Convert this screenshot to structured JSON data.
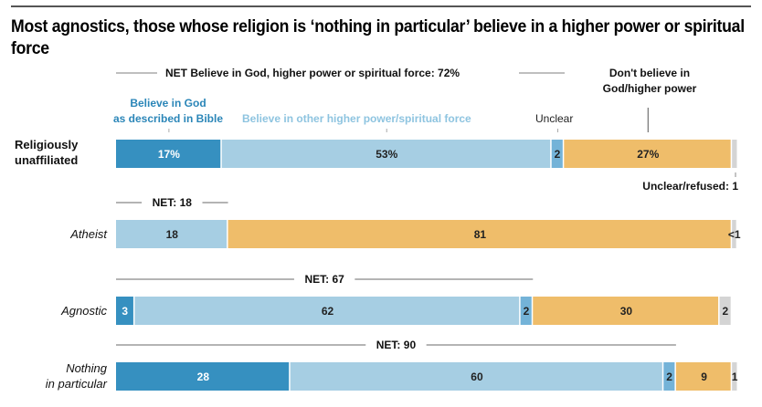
{
  "title": "Most agnostics, those whose religion is ‘nothing in particular’ believe in a higher power or spiritual force",
  "colors": {
    "bible": "#3690c0",
    "other": "#a6cee3",
    "unclear": "#74b3d8",
    "dont": "#efbd6a",
    "refused": "#d4d4d4",
    "net_line": "#999999",
    "bible_label": "#2b86b8",
    "other_label": "#8ec4e0"
  },
  "header": {
    "net_label": "NET Believe in God, higher power or spiritual force: 72%",
    "dont_believe_label_line1": "Don't believe in",
    "dont_believe_label_line2": "God/higher power",
    "bible_label_line1": "Believe in God",
    "bible_label_line2": "as described in Bible",
    "other_label": "Believe in other higher power/spiritual force",
    "unclear_label": "Unclear",
    "refused_annotation": "Unclear/refused: 1"
  },
  "chart_data": {
    "type": "bar",
    "orientation": "horizontal-stacked",
    "title": "Most agnostics, those whose religion is ‘nothing in particular’ believe in a higher power or spiritual force",
    "xlim": [
      0,
      100
    ],
    "series_names": [
      "Believe in God as described in Bible",
      "Believe in other higher power/spiritual force",
      "Unclear",
      "Don't believe in God/higher power",
      "Unclear/refused"
    ],
    "rows": [
      {
        "category": "Religiously unaffiliated",
        "italic": false,
        "net_label": "",
        "net_value": 72,
        "values": [
          17,
          53,
          2,
          27,
          1
        ],
        "labels": [
          "17%",
          "53%",
          "2",
          "27%",
          ""
        ]
      },
      {
        "category": "Atheist",
        "italic": true,
        "net_label": "NET: 18",
        "net_value": 18,
        "values": [
          0,
          18,
          0,
          81,
          0.5
        ],
        "labels": [
          "",
          "18",
          "",
          "81",
          "<1"
        ]
      },
      {
        "category": "Agnostic",
        "italic": true,
        "net_label": "NET: 67",
        "net_value": 67,
        "values": [
          3,
          62,
          2,
          30,
          2
        ],
        "labels": [
          "3",
          "62",
          "2",
          "30",
          "2"
        ]
      },
      {
        "category": "Nothing in particular",
        "italic": true,
        "net_label": "NET: 90",
        "net_value": 90,
        "values": [
          28,
          60,
          2,
          9,
          1
        ],
        "labels": [
          "28",
          "60",
          "2",
          "9",
          "1"
        ]
      }
    ]
  }
}
